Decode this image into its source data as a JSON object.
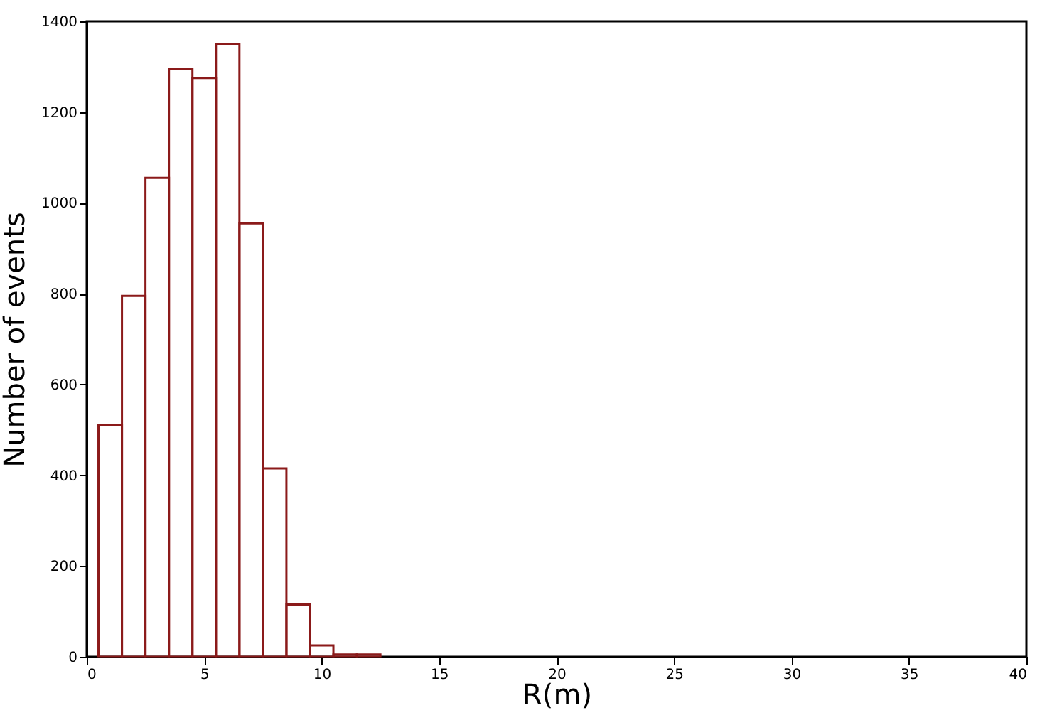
{
  "chart_data": {
    "type": "histogram",
    "xlabel": "R(m)",
    "ylabel": "Number of events",
    "bins": [
      0.5,
      1.5,
      2.5,
      3.5,
      4.5,
      5.5,
      6.5,
      7.5,
      8.5,
      9.5,
      10.5,
      11.5,
      12.5
    ],
    "values": [
      510,
      795,
      1055,
      1295,
      1275,
      1350,
      955,
      415,
      115,
      25,
      5,
      5
    ],
    "color": "#8b1a1a",
    "xlim": [
      0,
      40
    ],
    "xticks": [
      0,
      5,
      10,
      15,
      20,
      25,
      30,
      35,
      40
    ],
    "ylim": [
      0,
      1400
    ],
    "yticks": [
      0,
      200,
      400,
      600,
      800,
      1000,
      1200,
      1400
    ],
    "grid": false
  }
}
